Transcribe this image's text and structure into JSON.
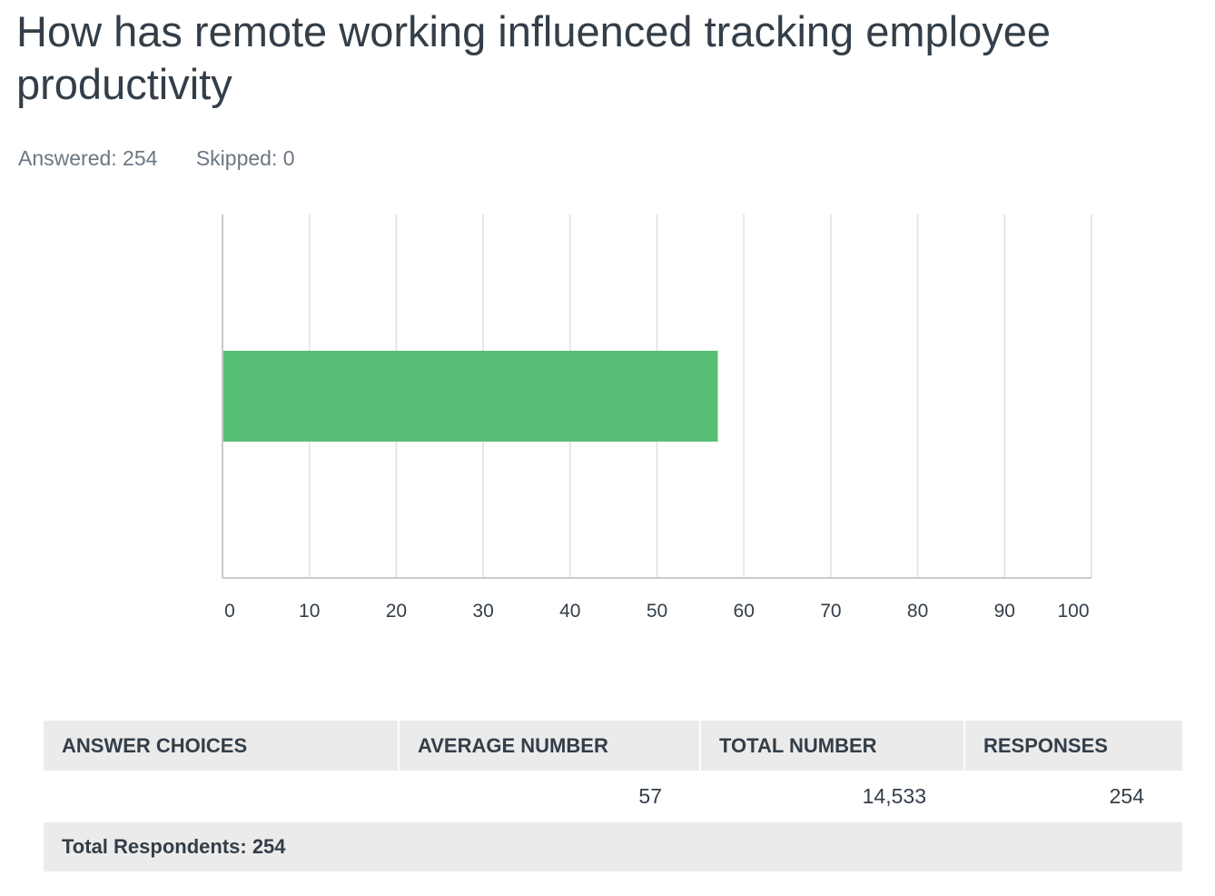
{
  "question": {
    "title": "How has remote working influenced tracking employee productivity",
    "answered": "Answered: 254",
    "skipped": "Skipped: 0"
  },
  "colors": {
    "bar": "#57bf76",
    "text": "#333e48",
    "muted": "#6b7783",
    "header_bg": "#ebebeb"
  },
  "chart_data": {
    "type": "bar",
    "orientation": "horizontal",
    "categories": [
      ""
    ],
    "values": [
      57
    ],
    "title": "",
    "xlabel": "",
    "ylabel": "",
    "xlim": [
      0,
      100
    ],
    "xticks": [
      0,
      10,
      20,
      30,
      40,
      50,
      60,
      70,
      80,
      90,
      100
    ],
    "grid": true,
    "legend": "none"
  },
  "table": {
    "headers": [
      "ANSWER CHOICES",
      "AVERAGE NUMBER",
      "TOTAL NUMBER",
      "RESPONSES"
    ],
    "rows": [
      {
        "choice": "",
        "average": "57",
        "total": "14,533",
        "responses": "254"
      }
    ],
    "total_respondents": "Total Respondents: 254"
  }
}
